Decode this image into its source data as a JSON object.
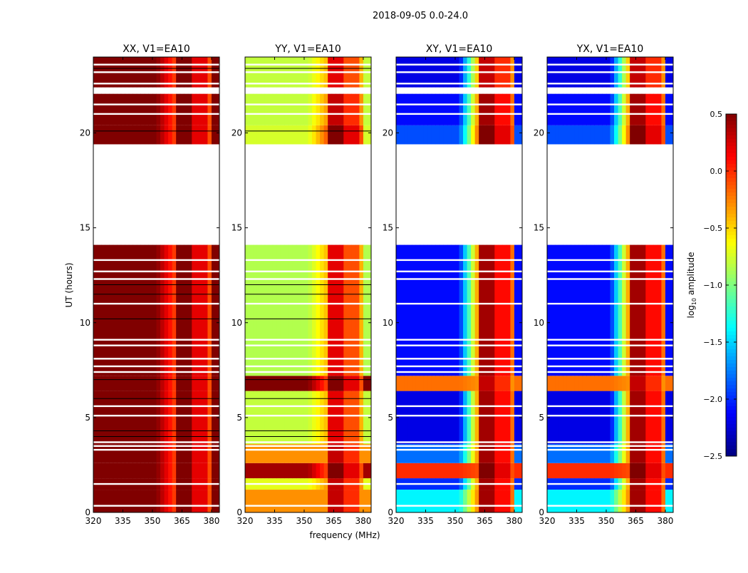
{
  "chart_data": {
    "type": "heatmap",
    "title": "2018-09-05 0.0-24.0",
    "xlabel": "frequency (MHz)",
    "ylabel": "UT (hours)",
    "xlim": [
      320,
      384
    ],
    "ylim": [
      0,
      24
    ],
    "xticks": [
      320,
      335,
      350,
      365,
      380
    ],
    "yticks": [
      0,
      5,
      10,
      15,
      20
    ],
    "colorbar": {
      "label_prefix": "log",
      "label_sub": "10",
      "label_suffix": " amplitude",
      "range": [
        -2.5,
        0.5
      ],
      "ticks": [
        "0.5",
        "0.0",
        "−0.5",
        "−1.0",
        "−1.5",
        "−2.0",
        "−2.5"
      ],
      "tick_values": [
        0.5,
        0,
        -0.5,
        -1,
        -1.5,
        -2,
        -2.5
      ],
      "colormap": "jet"
    },
    "panels": [
      {
        "title": "XX, V1=EA10"
      },
      {
        "title": "YY, V1=EA10"
      },
      {
        "title": "XY, V1=EA10"
      },
      {
        "title": "YX, V1=EA10"
      }
    ],
    "segments": [
      {
        "t": [
          0.0,
          1.2
        ],
        "values": [
          [
            0.5,
            0.5
          ],
          [
            -0.3,
            0.3
          ],
          [
            -1.4,
            0.4
          ],
          [
            -1.4,
            0.4
          ]
        ]
      },
      {
        "t": [
          1.2,
          1.8
        ],
        "values": [
          [
            0.5,
            0.5
          ],
          [
            -0.7,
            0.3
          ],
          [
            -2.0,
            0.4
          ],
          [
            -2.0,
            0.4
          ]
        ]
      },
      {
        "t": [
          1.8,
          2.6
        ],
        "values": [
          [
            0.5,
            0.5
          ],
          [
            0.4,
            0.5
          ],
          [
            0.0,
            0.5
          ],
          [
            0.0,
            0.5
          ]
        ]
      },
      {
        "t": [
          2.6,
          3.6
        ],
        "values": [
          [
            0.5,
            0.5
          ],
          [
            -0.3,
            0.3
          ],
          [
            -1.8,
            0.4
          ],
          [
            -1.8,
            0.4
          ]
        ]
      },
      {
        "t": [
          3.6,
          6.4
        ],
        "values": [
          [
            0.5,
            0.5
          ],
          [
            -0.8,
            0.2
          ],
          [
            -2.2,
            0.4
          ],
          [
            -2.2,
            0.4
          ]
        ]
      },
      {
        "t": [
          6.4,
          7.2
        ],
        "values": [
          [
            0.5,
            0.5
          ],
          [
            0.5,
            0.5
          ],
          [
            -0.2,
            0.3
          ],
          [
            -0.2,
            0.3
          ]
        ]
      },
      {
        "t": [
          7.2,
          14.1
        ],
        "values": [
          [
            0.5,
            0.5
          ],
          [
            -0.85,
            0.2
          ],
          [
            -2.1,
            0.4
          ],
          [
            -2.1,
            0.4
          ]
        ]
      },
      {
        "t": [
          19.4,
          20.4
        ],
        "values": [
          [
            0.5,
            0.5
          ],
          [
            -0.75,
            0.5
          ],
          [
            -1.9,
            0.5
          ],
          [
            -1.9,
            0.5
          ]
        ]
      },
      {
        "t": [
          20.4,
          22.06
        ],
        "values": [
          [
            0.5,
            0.5
          ],
          [
            -0.8,
            0.3
          ],
          [
            -2.1,
            0.4
          ],
          [
            -2.1,
            0.4
          ]
        ]
      },
      {
        "t": [
          22.4,
          24.0
        ],
        "values": [
          [
            0.5,
            0.5
          ],
          [
            -0.8,
            0.2
          ],
          [
            -2.2,
            0.3
          ],
          [
            -2.2,
            0.3
          ]
        ]
      }
    ],
    "flagged_lines_white": [
      0.35,
      1.5,
      3.3,
      3.5,
      3.7,
      5.1,
      5.6,
      7.4,
      7.7,
      8.1,
      8.8,
      9.1,
      11.0,
      12.3,
      12.7,
      13.3,
      21.0,
      21.5,
      22.6,
      23.2,
      23.6
    ],
    "flagged_lines_black": [
      4.0,
      4.3,
      6.0,
      7.0,
      10.2,
      11.5,
      12.0,
      20.1,
      23.4
    ]
  }
}
